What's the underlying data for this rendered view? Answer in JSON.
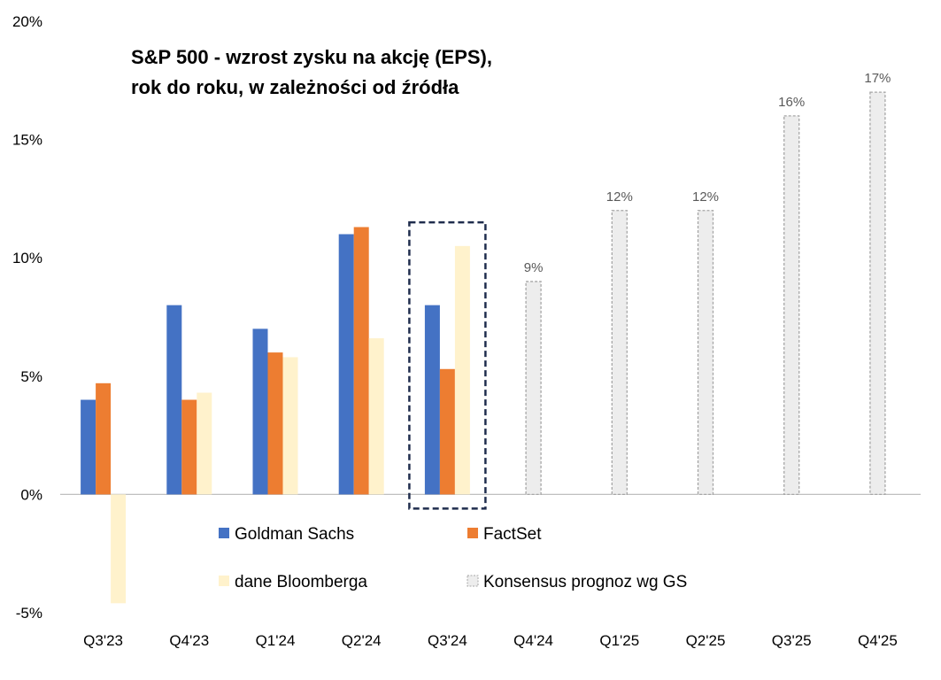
{
  "chart_data": {
    "type": "bar",
    "title_line1": "S&P 500 - wzrost zysku na akcję (EPS),",
    "title_line2": "rok do roku, w zależności od źródła",
    "categories": [
      "Q3'23",
      "Q4'23",
      "Q1'24",
      "Q2'24",
      "Q3'24",
      "Q4'24",
      "Q1'25",
      "Q2'25",
      "Q3'25",
      "Q4'25"
    ],
    "ylim": [
      -5,
      20
    ],
    "yticks": [
      -5,
      0,
      5,
      10,
      15,
      20
    ],
    "ytick_labels": [
      "-5%",
      "0%",
      "5%",
      "10%",
      "15%",
      "20%"
    ],
    "series": [
      {
        "name": "Goldman Sachs",
        "color": "#4472C4",
        "slot": 0,
        "values": [
          4,
          8,
          7,
          11,
          8,
          null,
          null,
          null,
          null,
          null
        ]
      },
      {
        "name": "FactSet",
        "color": "#ED7D31",
        "slot": 1,
        "values": [
          4.7,
          4,
          6,
          11.3,
          5.3,
          null,
          null,
          null,
          null,
          null
        ]
      },
      {
        "name": "dane Bloomberga",
        "color": "#FFF2CC",
        "slot": 2,
        "values": [
          -4.6,
          4.3,
          5.8,
          6.6,
          10.5,
          null,
          null,
          null,
          null,
          null
        ]
      },
      {
        "name": "Konsensus prognoz wg GS",
        "color": "#EDEDED",
        "slot": 1,
        "values": [
          null,
          null,
          null,
          null,
          null,
          9,
          12,
          12,
          16,
          17
        ],
        "data_labels": [
          "",
          "",
          "",
          "",
          "",
          "9%",
          "12%",
          "12%",
          "16%",
          "17%"
        ]
      }
    ],
    "highlight_category": "Q3'24",
    "legend": [
      "Goldman Sachs",
      "FactSet",
      "dane Bloomberga",
      "Konsensus prognoz wg GS"
    ],
    "legend_position": "bottom"
  }
}
